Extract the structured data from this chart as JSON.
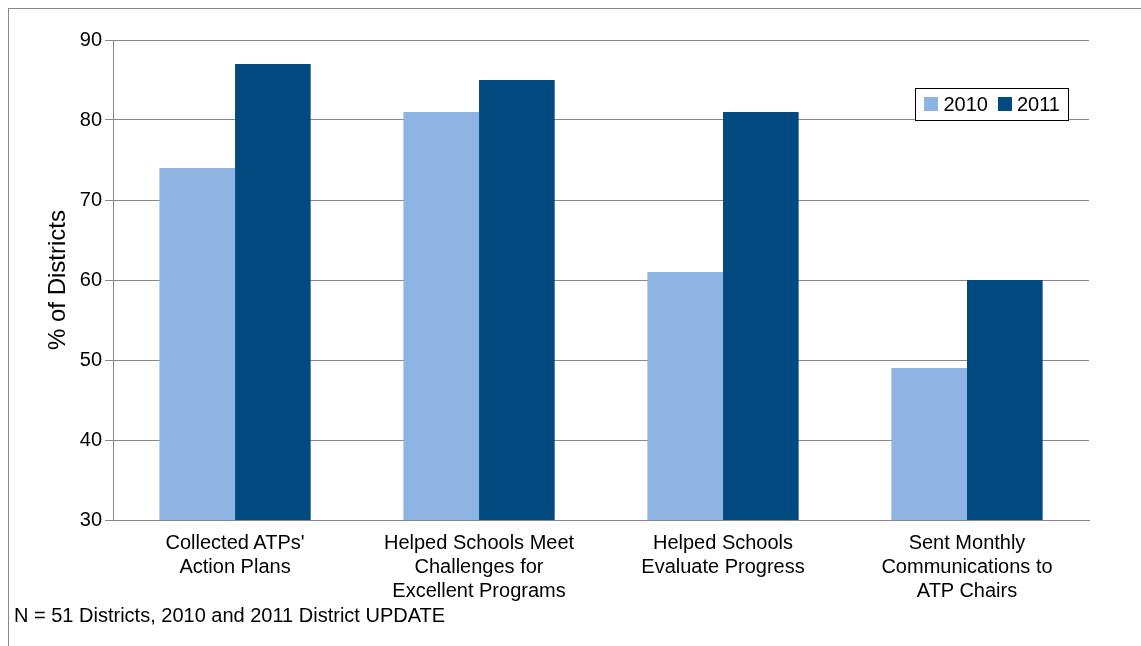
{
  "chart_data": {
    "type": "bar",
    "ylabel": "% of Districts",
    "categories": [
      "Collected ATPs' Action Plans",
      "Helped Schools Meet Challenges for Excellent Programs",
      "Helped Schools Evaluate Progress",
      "Sent Monthly Communications to ATP Chairs"
    ],
    "series": [
      {
        "name": "2010",
        "color": "#8eb4e3",
        "values": [
          74,
          81,
          61,
          49
        ]
      },
      {
        "name": "2011",
        "color": "#004a7f",
        "values": [
          87,
          85,
          81,
          60
        ]
      }
    ],
    "ylim": [
      30,
      90
    ],
    "yticks": [
      30,
      40,
      50,
      60,
      70,
      80,
      90
    ],
    "grid": "y",
    "legend": "top right",
    "annotations": [
      "N =  51 Districts, 2010 and 2011 District UPDATE"
    ]
  }
}
